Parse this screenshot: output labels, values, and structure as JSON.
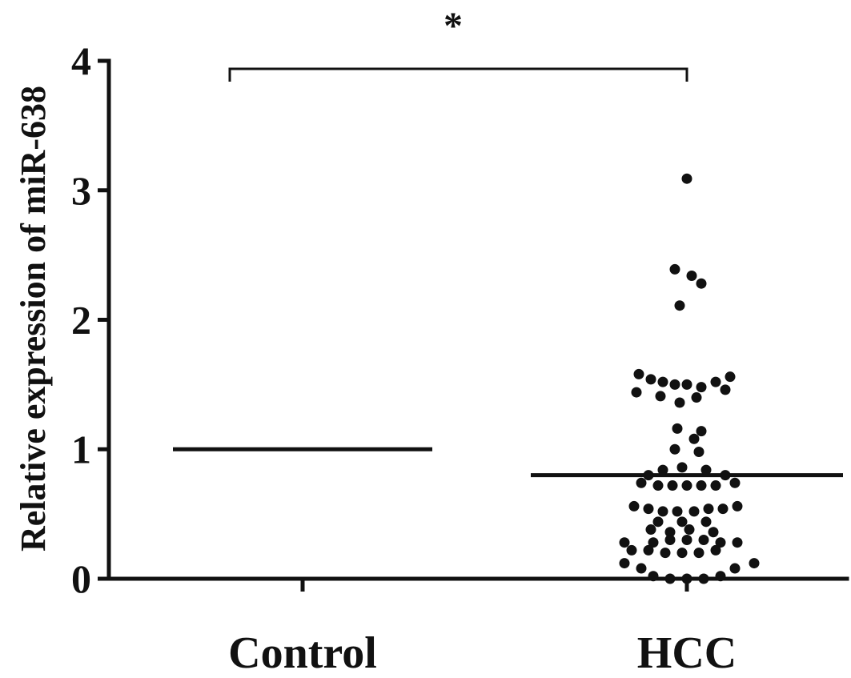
{
  "chart_data": {
    "type": "scatter",
    "title": "",
    "xlabel": "",
    "ylabel": "Relative expression of miR-638",
    "ylim": [
      0,
      4
    ],
    "yticks": [
      "0",
      "1",
      "2",
      "3",
      "4"
    ],
    "categories": [
      "Control",
      "HCC"
    ],
    "grid": false,
    "legend": "none",
    "significance": {
      "label": "*",
      "between": [
        "Control",
        "HCC"
      ]
    },
    "series": [
      {
        "category": "Control",
        "mean": 1.0,
        "points": []
      },
      {
        "category": "HCC",
        "mean": 0.8,
        "points": [
          {
            "dx": 0.0,
            "y": 3.09
          },
          {
            "dx": -0.05,
            "y": 2.39
          },
          {
            "dx": 0.02,
            "y": 2.34
          },
          {
            "dx": 0.06,
            "y": 2.28
          },
          {
            "dx": -0.03,
            "y": 2.11
          },
          {
            "dx": -0.2,
            "y": 1.58
          },
          {
            "dx": -0.15,
            "y": 1.54
          },
          {
            "dx": -0.1,
            "y": 1.52
          },
          {
            "dx": -0.05,
            "y": 1.5
          },
          {
            "dx": 0.0,
            "y": 1.5
          },
          {
            "dx": 0.06,
            "y": 1.48
          },
          {
            "dx": 0.12,
            "y": 1.52
          },
          {
            "dx": 0.18,
            "y": 1.56
          },
          {
            "dx": -0.21,
            "y": 1.44
          },
          {
            "dx": 0.16,
            "y": 1.46
          },
          {
            "dx": -0.11,
            "y": 1.41
          },
          {
            "dx": -0.03,
            "y": 1.36
          },
          {
            "dx": 0.04,
            "y": 1.4
          },
          {
            "dx": -0.04,
            "y": 1.16
          },
          {
            "dx": 0.06,
            "y": 1.14
          },
          {
            "dx": 0.03,
            "y": 1.08
          },
          {
            "dx": -0.05,
            "y": 1.0
          },
          {
            "dx": 0.05,
            "y": 0.98
          },
          {
            "dx": -0.1,
            "y": 0.84
          },
          {
            "dx": -0.02,
            "y": 0.86
          },
          {
            "dx": 0.08,
            "y": 0.84
          },
          {
            "dx": -0.16,
            "y": 0.8
          },
          {
            "dx": 0.16,
            "y": 0.8
          },
          {
            "dx": -0.19,
            "y": 0.74
          },
          {
            "dx": -0.12,
            "y": 0.72
          },
          {
            "dx": -0.06,
            "y": 0.72
          },
          {
            "dx": 0.0,
            "y": 0.72
          },
          {
            "dx": 0.06,
            "y": 0.72
          },
          {
            "dx": 0.12,
            "y": 0.72
          },
          {
            "dx": 0.2,
            "y": 0.74
          },
          {
            "dx": -0.22,
            "y": 0.56
          },
          {
            "dx": -0.16,
            "y": 0.54
          },
          {
            "dx": -0.1,
            "y": 0.52
          },
          {
            "dx": -0.04,
            "y": 0.52
          },
          {
            "dx": 0.03,
            "y": 0.52
          },
          {
            "dx": 0.09,
            "y": 0.54
          },
          {
            "dx": 0.15,
            "y": 0.54
          },
          {
            "dx": 0.21,
            "y": 0.56
          },
          {
            "dx": -0.12,
            "y": 0.44
          },
          {
            "dx": -0.02,
            "y": 0.44
          },
          {
            "dx": 0.08,
            "y": 0.44
          },
          {
            "dx": -0.15,
            "y": 0.38
          },
          {
            "dx": -0.07,
            "y": 0.36
          },
          {
            "dx": 0.01,
            "y": 0.38
          },
          {
            "dx": 0.11,
            "y": 0.36
          },
          {
            "dx": -0.26,
            "y": 0.28
          },
          {
            "dx": -0.14,
            "y": 0.28
          },
          {
            "dx": -0.07,
            "y": 0.3
          },
          {
            "dx": 0.0,
            "y": 0.3
          },
          {
            "dx": 0.07,
            "y": 0.3
          },
          {
            "dx": 0.14,
            "y": 0.28
          },
          {
            "dx": 0.21,
            "y": 0.28
          },
          {
            "dx": -0.23,
            "y": 0.22
          },
          {
            "dx": -0.16,
            "y": 0.22
          },
          {
            "dx": -0.09,
            "y": 0.2
          },
          {
            "dx": -0.02,
            "y": 0.2
          },
          {
            "dx": 0.05,
            "y": 0.2
          },
          {
            "dx": 0.12,
            "y": 0.22
          },
          {
            "dx": -0.26,
            "y": 0.12
          },
          {
            "dx": 0.28,
            "y": 0.12
          },
          {
            "dx": -0.19,
            "y": 0.08
          },
          {
            "dx": 0.2,
            "y": 0.08
          },
          {
            "dx": -0.14,
            "y": 0.02
          },
          {
            "dx": -0.07,
            "y": 0.0
          },
          {
            "dx": 0.0,
            "y": 0.0
          },
          {
            "dx": 0.07,
            "y": 0.0
          },
          {
            "dx": 0.14,
            "y": 0.02
          }
        ]
      }
    ]
  }
}
